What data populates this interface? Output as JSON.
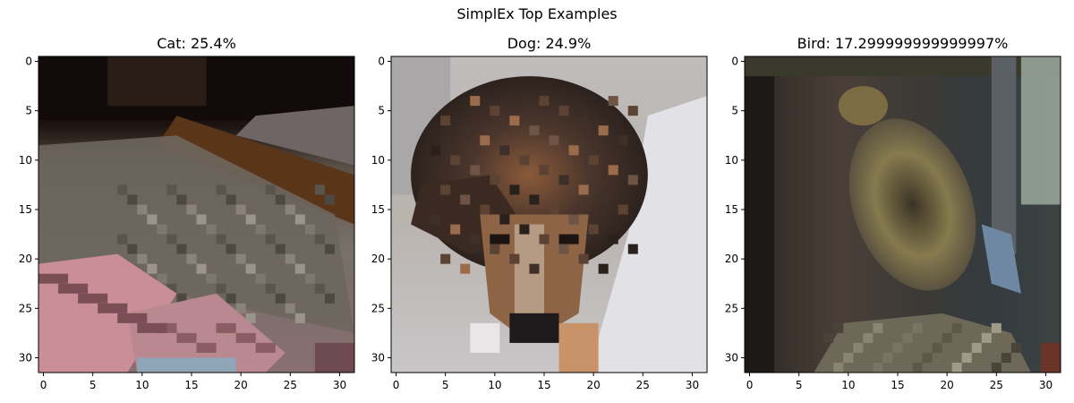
{
  "figure_title": "SimplEx Top Examples",
  "chart_data": [
    {
      "type": "heatmap",
      "title": "Cat: 25.4%",
      "xlim": [
        -0.5,
        31.5
      ],
      "ylim": [
        31.5,
        -0.5
      ],
      "xticks": [
        0,
        5,
        10,
        15,
        20,
        25,
        30
      ],
      "yticks": [
        0,
        5,
        10,
        15,
        20,
        25,
        30
      ],
      "grid": false
    },
    {
      "type": "heatmap",
      "title": "Dog: 24.9%",
      "xlim": [
        -0.5,
        31.5
      ],
      "ylim": [
        31.5,
        -0.5
      ],
      "xticks": [
        0,
        5,
        10,
        15,
        20,
        25,
        30
      ],
      "yticks": [
        0,
        5,
        10,
        15,
        20,
        25,
        30
      ],
      "grid": false
    },
    {
      "type": "heatmap",
      "title": "Bird: 17.299999999999997%",
      "xlim": [
        -0.5,
        31.5
      ],
      "ylim": [
        31.5,
        -0.5
      ],
      "xticks": [
        0,
        5,
        10,
        15,
        20,
        25,
        30
      ],
      "yticks": [
        0,
        5,
        10,
        15,
        20,
        25,
        30
      ],
      "grid": false
    }
  ]
}
